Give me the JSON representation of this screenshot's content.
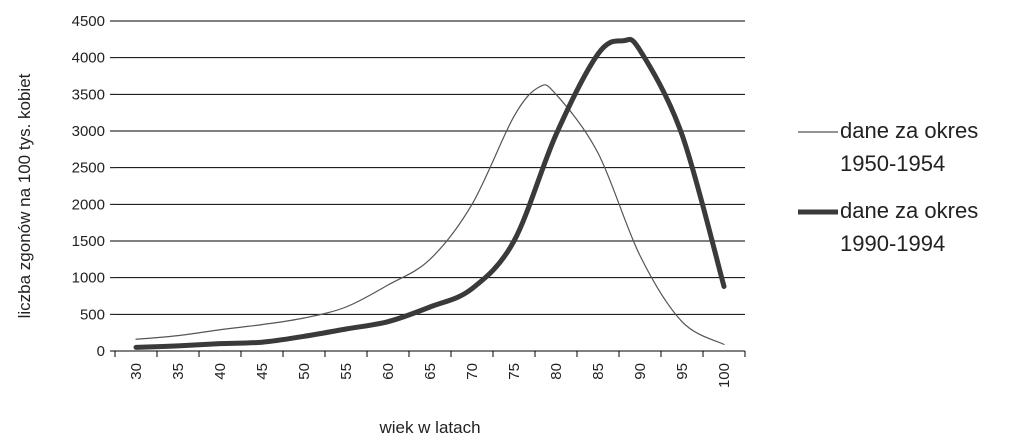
{
  "chart_data": {
    "type": "line",
    "xlabel": "wiek w latach",
    "ylabel": "liczba zgonów na 100 tys. kobiet",
    "x": [
      30,
      35,
      40,
      45,
      50,
      55,
      60,
      65,
      70,
      75,
      80,
      85,
      90,
      95,
      100
    ],
    "ylim": [
      0,
      4500
    ],
    "yticks": [
      "0",
      "500",
      "1000",
      "1500",
      "2000",
      "2500",
      "3000",
      "3500",
      "4000",
      "4500"
    ],
    "xticks": [
      "30",
      "35",
      "40",
      "45",
      "50",
      "55",
      "60",
      "65",
      "70",
      "75",
      "80",
      "85",
      "90",
      "95",
      "100"
    ],
    "grid": "horizontal",
    "legend_position": "right",
    "series": [
      {
        "name_lines": [
          "dane za okres",
          "1950-1954"
        ],
        "style": "thin",
        "color": "#555555",
        "x": [
          30,
          35,
          40,
          45,
          50,
          55,
          60,
          65,
          70,
          75,
          78,
          80,
          85,
          90,
          95,
          100
        ],
        "values": [
          160,
          210,
          290,
          360,
          450,
          600,
          900,
          1250,
          2000,
          3200,
          3600,
          3500,
          2700,
          1300,
          400,
          90
        ]
      },
      {
        "name_lines": [
          "dane za okres",
          "1990-1994"
        ],
        "style": "thick",
        "color": "#3a3a3a",
        "x": [
          30,
          35,
          40,
          45,
          50,
          55,
          60,
          65,
          70,
          75,
          80,
          85,
          88,
          90,
          95,
          100
        ],
        "values": [
          50,
          70,
          100,
          120,
          200,
          300,
          400,
          600,
          850,
          1500,
          2950,
          4050,
          4230,
          4100,
          2950,
          880
        ]
      }
    ]
  }
}
